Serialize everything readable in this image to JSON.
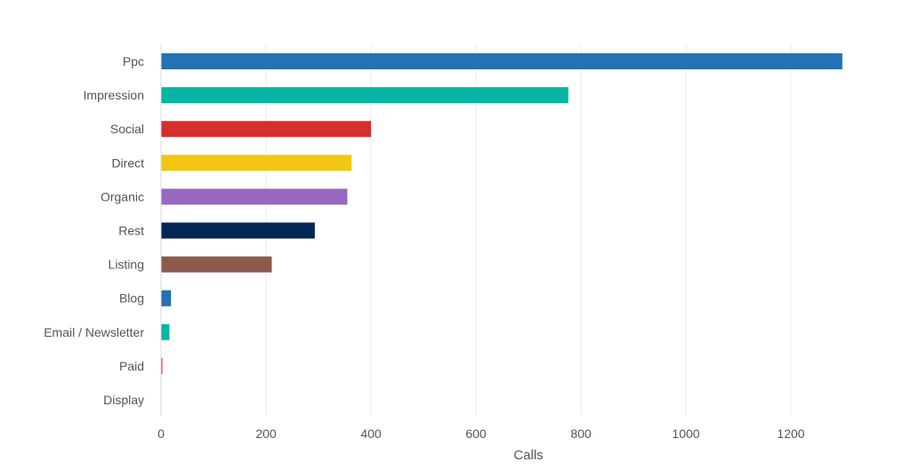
{
  "chart_data": {
    "type": "bar",
    "orientation": "horizontal",
    "title": "",
    "xlabel": "Calls",
    "ylabel": "",
    "xlim": [
      0,
      1300
    ],
    "x_ticks": [
      0,
      200,
      400,
      600,
      800,
      1000,
      1200
    ],
    "grid": "vertical",
    "legend": "none",
    "categories": [
      "Ppc",
      "Impression",
      "Social",
      "Direct",
      "Organic",
      "Rest",
      "Listing",
      "Blog",
      "Email / Newsletter",
      "Paid",
      "Display"
    ],
    "values": [
      1298,
      776,
      400,
      363,
      355,
      293,
      211,
      19,
      16,
      2,
      0
    ],
    "colors": [
      "#2272b4",
      "#08b4a4",
      "#d62d2d",
      "#f2c613",
      "#9868c0",
      "#032654",
      "#8c5a4c",
      "#2272b4",
      "#08b4a4",
      "#d62d2d",
      "#f2c613"
    ]
  }
}
